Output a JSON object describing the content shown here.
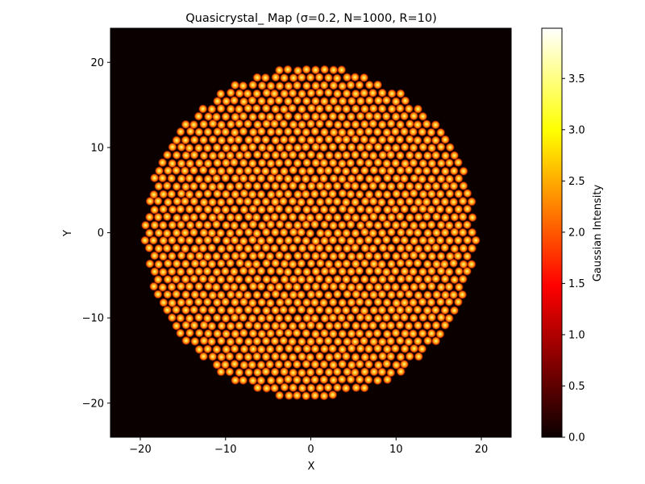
{
  "chart_data": {
    "type": "heatmap",
    "title": "Quasicrystal_ Map (σ=0.2, N=1000, R=10)",
    "xlabel": "X",
    "ylabel": "Y",
    "xlim": [
      -23.5,
      23.5
    ],
    "ylim": [
      -24,
      24
    ],
    "xticks": [
      -20,
      -10,
      0,
      10,
      20
    ],
    "yticks": [
      -20,
      -10,
      0,
      10,
      20
    ],
    "xtick_labels": [
      "−20",
      "−10",
      "0",
      "10",
      "20"
    ],
    "ytick_labels": [
      "−20",
      "−10",
      "0",
      "10",
      "20"
    ],
    "colormap": "hot",
    "background_color": "#0b0000",
    "point_halo_color": "#ff5a00",
    "point_core_color": "#ffd24a",
    "pattern": {
      "shape": "disc",
      "radius": 19.5,
      "approx_spacing": 1.05,
      "symmetry": "quasicrystal"
    },
    "colorbar": {
      "label": "Gaussian Intensity",
      "min": 0.0,
      "max": 3.99,
      "ticks": [
        0.0,
        0.5,
        1.0,
        1.5,
        2.0,
        2.5,
        3.0,
        3.5
      ],
      "tick_labels": [
        "0.0",
        "0.5",
        "1.0",
        "1.5",
        "2.0",
        "2.5",
        "3.0",
        "3.5"
      ]
    },
    "grid": false
  }
}
